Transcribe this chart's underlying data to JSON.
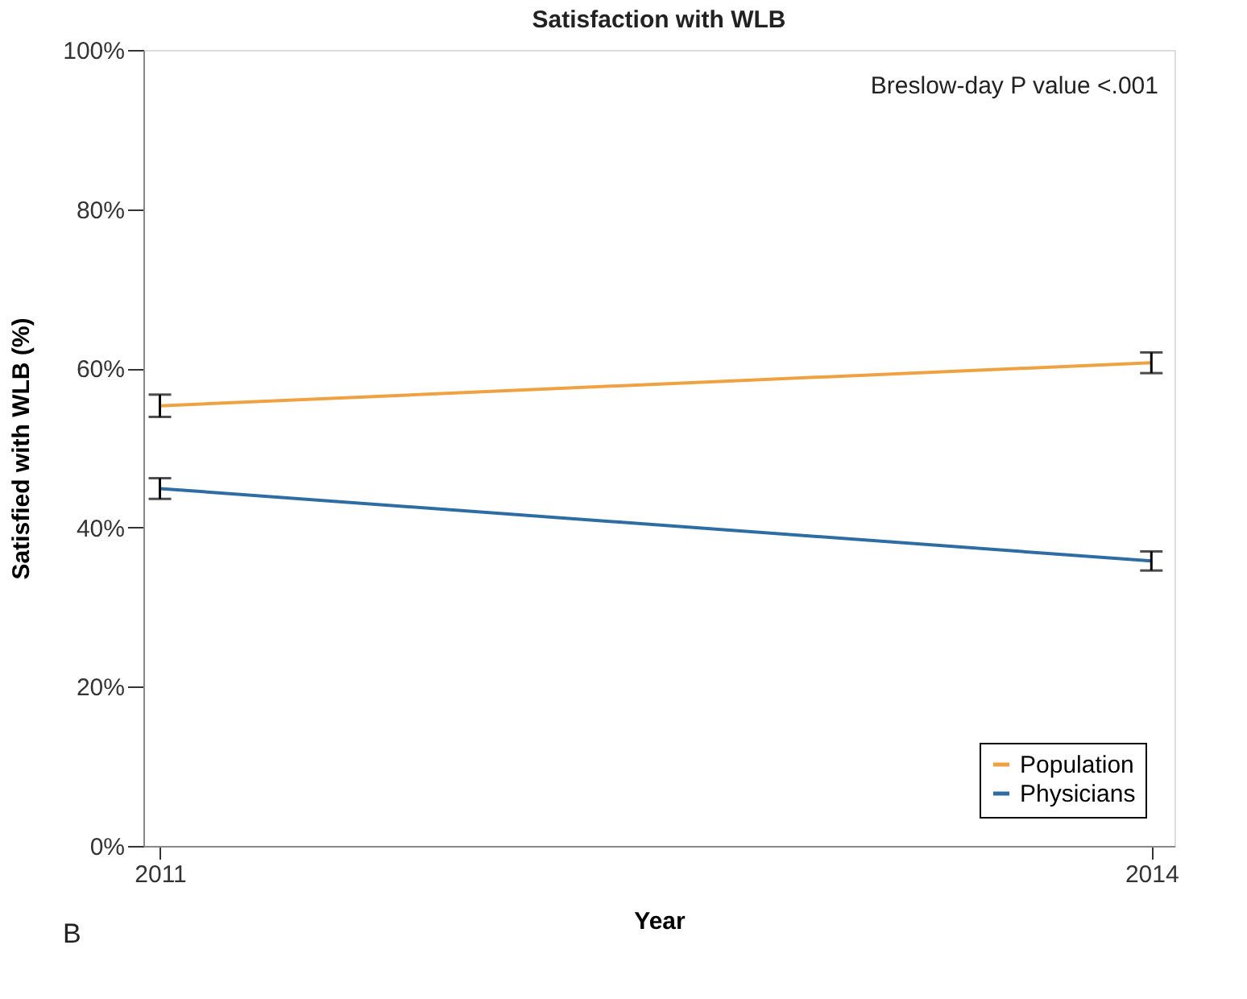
{
  "chart_data": {
    "type": "line",
    "title": "Satisfaction with WLB",
    "xlabel": "Year",
    "ylabel": "Satisfied with WLB (%)",
    "x": [
      2011,
      2014
    ],
    "series": [
      {
        "name": "Population",
        "color": "#f0a243",
        "values": [
          55.3,
          60.7
        ],
        "errors": [
          1.4,
          1.3
        ]
      },
      {
        "name": "Physicians",
        "color": "#2e6ca4",
        "values": [
          44.9,
          35.8
        ],
        "errors": [
          1.3,
          1.2
        ]
      }
    ],
    "xlim": [
      2010.95,
      2014.07
    ],
    "xticks": [
      2011,
      2014
    ],
    "ylim": [
      0,
      100
    ],
    "yticks": [
      {
        "value": 0,
        "label": "0%"
      },
      {
        "value": 20,
        "label": "20%"
      },
      {
        "value": 40,
        "label": "40%"
      },
      {
        "value": 60,
        "label": "60%"
      },
      {
        "value": 80,
        "label": "80%"
      },
      {
        "value": 100,
        "label": "100%"
      }
    ],
    "annotations": [
      "Breslow-day P value <.001",
      "B"
    ],
    "legend": "bottom right",
    "grid": false,
    "marker": "none",
    "line_style": "solid"
  }
}
